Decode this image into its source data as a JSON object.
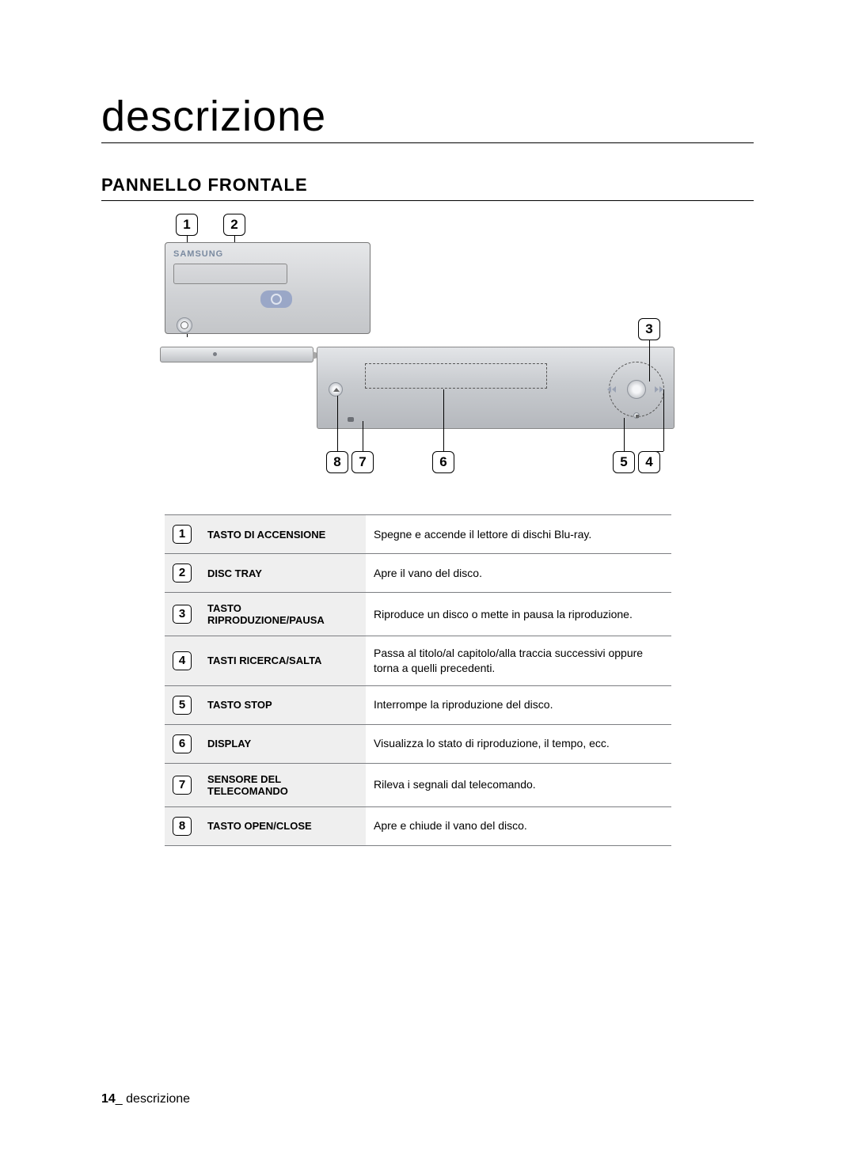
{
  "title": "descrizione",
  "title_fontsize": 54,
  "title_color": "#000000",
  "section_heading": "PANNELLO FRONTALE",
  "section_heading_fontsize": 22,
  "brand_text": "SAMSUNG",
  "callouts": {
    "c1": "1",
    "c2": "2",
    "c3": "3",
    "c4": "4",
    "c5": "5",
    "c6": "6",
    "c7": "7",
    "c8": "8"
  },
  "rows": [
    {
      "n": "1",
      "name": "TASTO DI ACCENSIONE",
      "desc": "Spegne e accende il lettore di dischi Blu-ray."
    },
    {
      "n": "2",
      "name": "DISC TRAY",
      "desc": "Apre il vano del disco."
    },
    {
      "n": "3",
      "name": "TASTO RIPRODUZIONE/PAUSA",
      "desc": "Riproduce un disco o mette in pausa la riproduzione."
    },
    {
      "n": "4",
      "name": "TASTI RICERCA/SALTA",
      "desc": "Passa al titolo/al capitolo/alla traccia successivi oppure torna a quelli precedenti."
    },
    {
      "n": "5",
      "name": "TASTO STOP",
      "desc": "Interrompe la riproduzione del disco."
    },
    {
      "n": "6",
      "name": "DISPLAY",
      "desc": "Visualizza lo stato di riproduzione, il tempo, ecc."
    },
    {
      "n": "7",
      "name": "SENSORE DEL TELECOMANDO",
      "desc": "Rileva i segnali dal telecomando."
    },
    {
      "n": "8",
      "name": "TASTO OPEN/CLOSE",
      "desc": "Apre e chiude il vano del disco."
    }
  ],
  "footer_page": "14",
  "footer_sep": "_ ",
  "footer_text": "descrizione",
  "colors": {
    "rule": "#000000",
    "table_border": "#7c7e82",
    "shade": "#efefef"
  }
}
